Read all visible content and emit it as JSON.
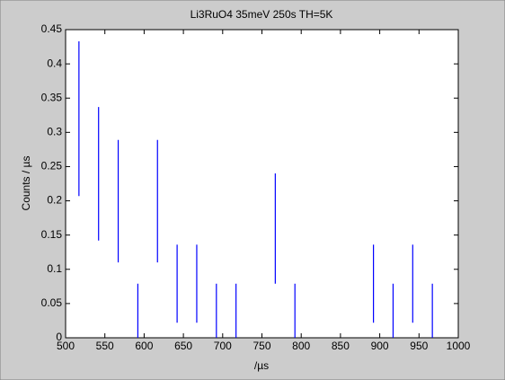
{
  "chart_data": {
    "type": "errorbar",
    "title": "Li3RuO4 35meV 250s TH=5K",
    "xlabel": "/µs",
    "ylabel": "Counts / µs",
    "x": [
      517,
      542,
      567,
      592,
      617,
      642,
      667,
      692,
      717,
      767,
      792,
      892,
      917,
      942,
      967
    ],
    "low": [
      0.207,
      0.142,
      0.11,
      0,
      0.11,
      0.022,
      0.022,
      0,
      0,
      0.079,
      0,
      0.022,
      0,
      0.022,
      0
    ],
    "high": [
      0.433,
      0.337,
      0.289,
      0.079,
      0.289,
      0.136,
      0.136,
      0.079,
      0.079,
      0.24,
      0.079,
      0.136,
      0.079,
      0.136,
      0.079
    ],
    "color": "#0000ff",
    "xlim": [
      500,
      1000
    ],
    "xticks": [
      500,
      550,
      600,
      650,
      700,
      750,
      800,
      850,
      900,
      950,
      1000
    ],
    "ylim": [
      0,
      0.45
    ],
    "yticks": [
      0,
      0.05,
      0.1,
      0.15,
      0.2,
      0.25,
      0.3,
      0.35,
      0.4,
      0.45
    ]
  }
}
